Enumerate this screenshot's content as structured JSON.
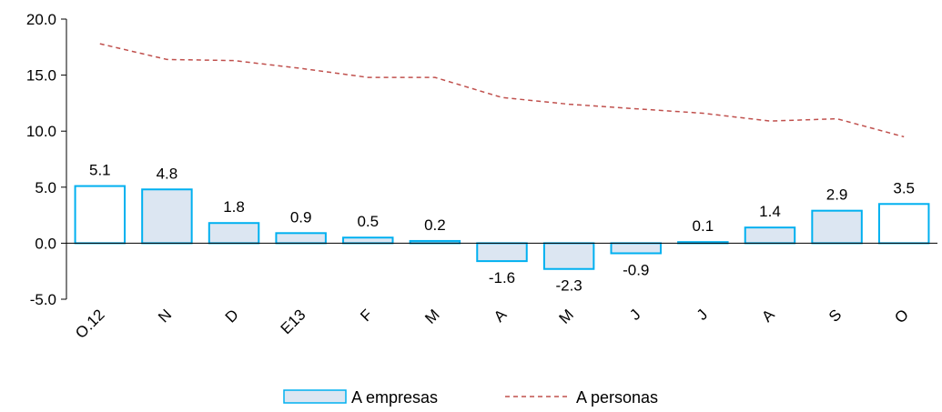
{
  "chart_data": {
    "type": "bar",
    "title": "",
    "xlabel": "",
    "ylabel": "",
    "ylim": [
      -5.0,
      20.0
    ],
    "yticks": [
      "20.0",
      "15.0",
      "10.0",
      "5.0",
      "0.0",
      "-5.0"
    ],
    "grid": false,
    "legend_position": "bottom",
    "categories": [
      "O.12",
      "N",
      "D",
      "E13",
      "F",
      "M",
      "A",
      "M",
      "J",
      "J",
      "A",
      "S",
      "O"
    ],
    "series": [
      {
        "name": "A empresas",
        "kind": "bar",
        "values": [
          5.1,
          4.8,
          1.8,
          0.9,
          0.5,
          0.2,
          -1.6,
          -2.3,
          -0.9,
          0.1,
          1.4,
          2.9,
          3.5
        ],
        "labels": [
          "5.1",
          "4.8",
          "1.8",
          "0.9",
          "0.5",
          "0.2",
          "-1.6",
          "-2.3",
          "-0.9",
          "0.1",
          "1.4",
          "2.9",
          "3.5"
        ],
        "fill_colors": [
          "#ffffff",
          "#dce6f2",
          "#dce6f2",
          "#dce6f2",
          "#dce6f2",
          "#dce6f2",
          "#dce6f2",
          "#dce6f2",
          "#dce6f2",
          "#dce6f2",
          "#dce6f2",
          "#dce6f2",
          "#ffffff"
        ],
        "border_color": "#00b0f0"
      },
      {
        "name": "A personas",
        "kind": "line",
        "style": "dashed",
        "color": "#c0504d",
        "values": [
          17.8,
          16.4,
          16.3,
          15.6,
          14.8,
          14.8,
          13.0,
          12.4,
          12.0,
          11.6,
          10.9,
          11.1,
          9.5
        ]
      }
    ]
  }
}
